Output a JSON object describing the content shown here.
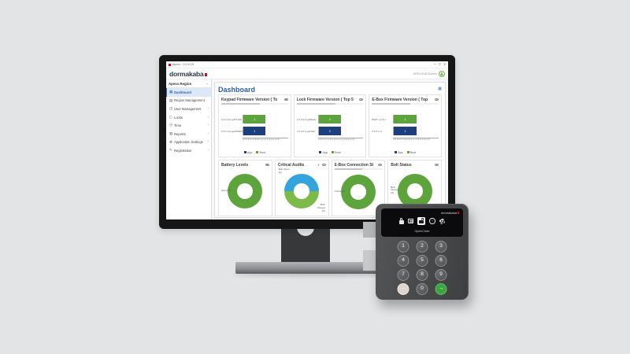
{
  "window": {
    "title": "Apexx - 3.0.0.20",
    "controls": {
      "minimize": "–",
      "maximize": "□",
      "close": "×"
    }
  },
  "app": {
    "brand": "dormakaba",
    "user": "APEXXDATAdmin"
  },
  "sidebar": {
    "header": "Apexx Region",
    "pin": "→",
    "items": [
      {
        "label": "Dashboard",
        "icon": "dashboard-icon",
        "active": true,
        "chevron": false
      },
      {
        "label": "Region Management",
        "icon": "region-management-icon",
        "active": false,
        "chevron": false
      },
      {
        "label": "User Management",
        "icon": "user-management-icon",
        "active": false,
        "chevron": true
      },
      {
        "label": "Locks",
        "icon": "locks-icon",
        "active": false,
        "chevron": true
      },
      {
        "label": "Time",
        "icon": "time-icon",
        "active": false,
        "chevron": true
      },
      {
        "label": "Reports",
        "icon": "reports-icon",
        "active": false,
        "chevron": true
      },
      {
        "label": "Application Settings",
        "icon": "application-settings-icon",
        "active": false,
        "chevron": true
      },
      {
        "label": "Registration",
        "icon": "registration-icon",
        "active": false,
        "chevron": true
      }
    ],
    "chevron_glyph": "›"
  },
  "main": {
    "title": "Dashboard"
  },
  "chart_data": [
    {
      "type": "bar",
      "orientation": "horizontal",
      "title": "Keypad Firmware Version ( To",
      "xlim": [
        0.5,
        1.5
      ],
      "ticks": [
        "0.5",
        "0.6",
        "0.7",
        "0.8",
        "0.9",
        "1",
        "1.1",
        "1.2",
        "1.3",
        "1.4",
        "1.5"
      ],
      "bars": [
        {
          "label": "0.6.2.0-0-g037e9f4",
          "series": "Boot",
          "value": 1,
          "color": "#5ea43c"
        },
        {
          "label": "0.6.2.0-0-g2e598e5c",
          "series": "App",
          "value": 1,
          "color": "#1e3f7e"
        }
      ],
      "legend": [
        {
          "label": "App",
          "color": "#1e3f7e"
        },
        {
          "label": "Boot",
          "color": "#5ea43c"
        }
      ]
    },
    {
      "type": "bar",
      "orientation": "horizontal",
      "title": "Lock Firmware Version ( Top 5",
      "xlim": [
        1.5,
        2.5
      ],
      "ticks": [
        "1.5",
        "1.6",
        "1.7",
        "1.8",
        "1.9",
        "2",
        "2.1",
        "2.2",
        "2.3",
        "2.4",
        "2.5"
      ],
      "bars": [
        {
          "label": "0.6.2.0-0-g298e3c",
          "series": "Boot",
          "value": 2,
          "color": "#5ea43c"
        },
        {
          "label": "0.6.2.0-0-g1f4feb",
          "series": "App",
          "value": 2,
          "color": "#1e3f7e"
        }
      ],
      "legend": [
        {
          "label": "App",
          "color": "#1e3f7e"
        },
        {
          "label": "Boot",
          "color": "#5ea43c"
        }
      ]
    },
    {
      "type": "bar",
      "orientation": "horizontal",
      "title": "E-Box Firmware Version ( Top",
      "xlim": [
        0.5,
        1.5
      ],
      "ticks": [
        "0.5",
        "0.6",
        "0.7",
        "0.8",
        "0.9",
        "1",
        "1.1",
        "1.2",
        "1.3",
        "1.4",
        "1.5"
      ],
      "bars": [
        {
          "label": "BSPU v2.6.2",
          "series": "Boot",
          "value": 1,
          "color": "#5ea43c"
        },
        {
          "label": "0.6.2.1-0",
          "series": "App",
          "value": 1,
          "color": "#1e3f7e"
        }
      ],
      "legend": [
        {
          "label": "App",
          "color": "#1e3f7e"
        },
        {
          "label": "Boot",
          "color": "#5ea43c"
        }
      ]
    },
    {
      "type": "donut",
      "title": "Battery Levels",
      "slices": [
        {
          "label": "Good",
          "value": 9,
          "color": "#5ea43c"
        }
      ]
    },
    {
      "type": "donut",
      "title": "Critical Audits",
      "has_filter": true,
      "slices": [
        {
          "label": "Bolt Open",
          "value": 2,
          "color": "#36a4dc"
        },
        {
          "label": "Bolt Closed",
          "value": 2,
          "color": "#7cbb4a"
        }
      ]
    },
    {
      "type": "donut",
      "title": "E-Box Connection St",
      "slices": [
        {
          "label": "Online",
          "value": 9,
          "color": "#5ea43c"
        }
      ]
    },
    {
      "type": "donut",
      "title": "Bolt Status",
      "slices": [
        {
          "label": "Bolt Closed",
          "value": 9,
          "color": "#5ea43c"
        }
      ]
    }
  ],
  "device": {
    "brand": "dormakaba",
    "screen": {
      "icons": [
        "lock-icon",
        "audit-log-icon",
        "open-close-icon",
        "update-icon",
        "settings-gear-icon"
      ],
      "selected_icon": "open-close-icon",
      "selected_label": "Open/Close"
    },
    "keys": [
      {
        "label": "1"
      },
      {
        "label": "2"
      },
      {
        "label": "3"
      },
      {
        "label": "4"
      },
      {
        "label": "5"
      },
      {
        "label": "6"
      },
      {
        "label": "7"
      },
      {
        "label": "8"
      },
      {
        "label": "9"
      },
      {
        "label": "←",
        "name": "back-key"
      },
      {
        "label": "0"
      },
      {
        "label": "→",
        "name": "enter-key"
      }
    ]
  }
}
